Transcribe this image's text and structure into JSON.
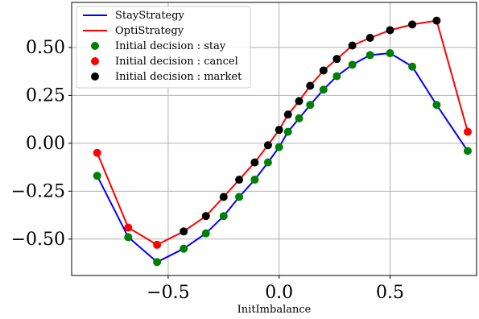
{
  "chart_data": {
    "type": "line",
    "xlabel": "InitImbalance",
    "ylabel": "",
    "xlim": [
      -0.935,
      0.89
    ],
    "ylim": [
      -0.69,
      0.735
    ],
    "xticks": [
      -0.5,
      0.0,
      0.5
    ],
    "xtick_labels": [
      "−0.5",
      "0.0",
      "0.5"
    ],
    "yticks": [
      -0.5,
      -0.25,
      0.0,
      0.25,
      0.5
    ],
    "ytick_labels": [
      "−0.50",
      "−0.25",
      "0.00",
      "0.25",
      "0.50"
    ],
    "grid": true,
    "legend_position": "top-left",
    "colors": {
      "stay_strategy": "#0000ff",
      "opti_strategy": "#ff0000",
      "decision_stay": "#008000",
      "decision_cancel": "#ff0000",
      "decision_market": "#000000"
    },
    "series": [
      {
        "name": "StayStrategy",
        "kind": "line",
        "color": "#0000ff",
        "x": [
          -0.82,
          -0.68,
          -0.55,
          -0.43,
          -0.33,
          -0.25,
          -0.18,
          -0.11,
          -0.05,
          0.0,
          0.04,
          0.09,
          0.14,
          0.2,
          0.26,
          0.33,
          0.41,
          0.5,
          0.6,
          0.71,
          0.85
        ],
        "y": [
          -0.17,
          -0.49,
          -0.62,
          -0.55,
          -0.47,
          -0.38,
          -0.28,
          -0.19,
          -0.1,
          -0.02,
          0.06,
          0.13,
          0.2,
          0.28,
          0.35,
          0.41,
          0.46,
          0.47,
          0.4,
          0.2,
          -0.04
        ]
      },
      {
        "name": "OptiStrategy",
        "kind": "line",
        "color": "#ff0000",
        "x": [
          -0.82,
          -0.68,
          -0.55,
          -0.43,
          -0.33,
          -0.25,
          -0.18,
          -0.11,
          -0.05,
          0.0,
          0.04,
          0.09,
          0.14,
          0.2,
          0.26,
          0.33,
          0.41,
          0.5,
          0.6,
          0.71,
          0.85
        ],
        "y": [
          -0.05,
          -0.44,
          -0.53,
          -0.46,
          -0.38,
          -0.28,
          -0.19,
          -0.1,
          -0.01,
          0.07,
          0.15,
          0.22,
          0.3,
          0.38,
          0.44,
          0.51,
          0.55,
          0.59,
          0.62,
          0.64,
          0.06
        ]
      },
      {
        "name": "Initial decision : stay",
        "kind": "scatter",
        "color": "#008000",
        "x": [
          -0.82,
          -0.68,
          -0.55,
          -0.43,
          -0.33,
          -0.25,
          -0.18,
          -0.11,
          -0.05,
          0.0,
          0.04,
          0.09,
          0.14,
          0.2,
          0.26,
          0.33,
          0.41,
          0.5,
          0.6,
          0.71,
          0.85
        ],
        "y": [
          -0.17,
          -0.49,
          -0.62,
          -0.55,
          -0.47,
          -0.38,
          -0.28,
          -0.19,
          -0.1,
          -0.02,
          0.06,
          0.13,
          0.2,
          0.28,
          0.35,
          0.41,
          0.46,
          0.47,
          0.4,
          0.2,
          -0.04
        ]
      },
      {
        "name": "Initial decision : cancel",
        "kind": "scatter",
        "color": "#ff0000",
        "x": [
          -0.82,
          -0.68,
          -0.55,
          0.85
        ],
        "y": [
          -0.05,
          -0.44,
          -0.53,
          0.06
        ]
      },
      {
        "name": "Initial decision : market",
        "kind": "scatter",
        "color": "#000000",
        "x": [
          -0.43,
          -0.33,
          -0.25,
          -0.18,
          -0.11,
          -0.05,
          0.0,
          0.04,
          0.09,
          0.14,
          0.2,
          0.26,
          0.33,
          0.41,
          0.5,
          0.6,
          0.71
        ],
        "y": [
          -0.46,
          -0.38,
          -0.28,
          -0.19,
          -0.1,
          -0.01,
          0.07,
          0.15,
          0.22,
          0.3,
          0.38,
          0.44,
          0.51,
          0.55,
          0.59,
          0.62,
          0.64
        ]
      }
    ]
  }
}
